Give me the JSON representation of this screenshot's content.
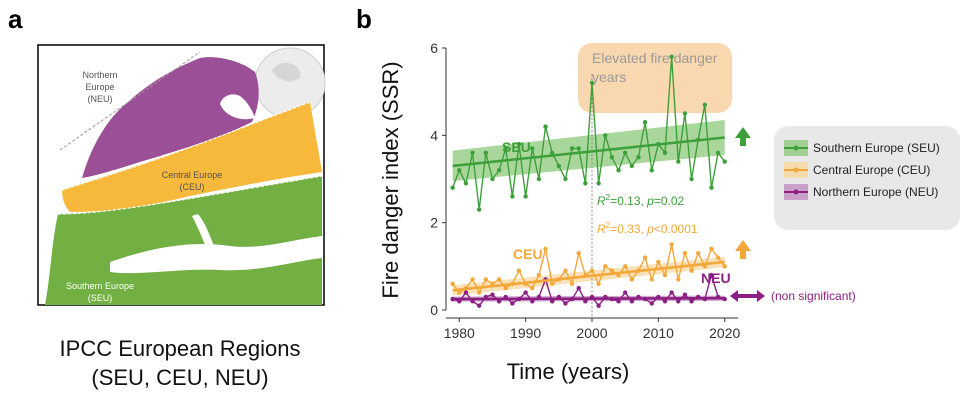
{
  "panel_a": {
    "label": "a",
    "caption_line1": "IPCC European Regions",
    "caption_line2": "(SEU, CEU, NEU)",
    "regions": [
      {
        "name_line1": "Northern",
        "name_line2": "Europe",
        "name_line3": "(NEU)",
        "color": "#9b4f96"
      },
      {
        "name_line1": "Central Europe",
        "name_line2": "(CEU)",
        "color": "#f6b93b"
      },
      {
        "name_line1": "Southern Europe",
        "name_line2": "(SEU)",
        "color": "#72b043"
      }
    ]
  },
  "panel_b": {
    "label": "b"
  },
  "chart_data": {
    "type": "line",
    "xlabel": "Time (years)",
    "ylabel": "Fire danger index (SSR)",
    "xlim": [
      1978,
      2022
    ],
    "ylim": [
      0,
      6
    ],
    "xticks": [
      1980,
      1990,
      2000,
      2010,
      2020
    ],
    "yticks": [
      0,
      2,
      4,
      6
    ],
    "grid": false,
    "vline_x": 2000,
    "highlight_label_line1": "Elevated fire danger",
    "highlight_label_line2": "years",
    "x": [
      1979,
      1980,
      1981,
      1982,
      1983,
      1984,
      1985,
      1986,
      1987,
      1988,
      1989,
      1990,
      1991,
      1992,
      1993,
      1994,
      1995,
      1996,
      1997,
      1998,
      1999,
      2000,
      2001,
      2002,
      2003,
      2004,
      2005,
      2006,
      2007,
      2008,
      2009,
      2010,
      2011,
      2012,
      2013,
      2014,
      2015,
      2016,
      2017,
      2018,
      2019,
      2020
    ],
    "series": [
      {
        "name": "Southern Europe (SEU)",
        "short": "SEU",
        "color": "#3ea03a",
        "band_color": "#8cc97a",
        "values": [
          2.8,
          3.2,
          2.9,
          3.6,
          2.3,
          3.6,
          3.0,
          3.2,
          3.7,
          2.6,
          3.8,
          2.6,
          3.7,
          3.0,
          4.2,
          3.6,
          3.3,
          3.0,
          3.7,
          3.7,
          2.9,
          5.2,
          2.9,
          4.0,
          3.5,
          3.2,
          3.6,
          3.3,
          3.5,
          4.3,
          3.2,
          3.8,
          3.6,
          5.8,
          3.4,
          4.5,
          3.0,
          3.9,
          4.7,
          2.8,
          3.6,
          3.4
        ],
        "trend": [
          3.3,
          3.95
        ],
        "band_halfwidth": [
          0.35,
          0.4
        ],
        "stat_r2": "=0.13, ",
        "stat_p": "=0.02",
        "arrow": "up"
      },
      {
        "name": "Central Europe (CEU)",
        "short": "CEU",
        "color": "#f5a83a",
        "band_color": "#f9d7a0",
        "values": [
          0.6,
          0.4,
          0.5,
          0.7,
          0.4,
          0.7,
          0.6,
          0.7,
          0.5,
          0.6,
          0.9,
          0.6,
          0.5,
          0.8,
          1.4,
          0.6,
          0.7,
          0.9,
          0.6,
          1.3,
          0.8,
          0.9,
          0.6,
          1.0,
          0.9,
          0.8,
          1.0,
          0.7,
          0.9,
          1.2,
          0.7,
          1.1,
          0.8,
          1.5,
          0.7,
          1.3,
          0.9,
          1.3,
          1.0,
          1.4,
          1.2,
          1.0
        ],
        "trend": [
          0.45,
          1.1
        ],
        "band_halfwidth": [
          0.12,
          0.12
        ],
        "stat_r2": "=0.33, ",
        "stat_p": "<0.0001",
        "arrow": "up"
      },
      {
        "name": "Northern Europe (NEU)",
        "short": "NEU",
        "color": "#8b1f82",
        "band_color": "#c28ec0",
        "values": [
          0.25,
          0.2,
          0.4,
          0.2,
          0.1,
          0.3,
          0.35,
          0.2,
          0.3,
          0.15,
          0.25,
          0.4,
          0.2,
          0.3,
          0.7,
          0.2,
          0.3,
          0.15,
          0.25,
          0.5,
          0.2,
          0.3,
          0.1,
          0.3,
          0.25,
          0.2,
          0.4,
          0.2,
          0.3,
          0.25,
          0.15,
          0.3,
          0.2,
          0.4,
          0.2,
          0.35,
          0.2,
          0.3,
          0.25,
          0.8,
          0.3,
          0.25
        ],
        "trend": [
          0.25,
          0.27
        ],
        "band_halfwidth": [
          0.06,
          0.06
        ],
        "stat_note": "(non significant)",
        "arrow": "both"
      }
    ]
  }
}
